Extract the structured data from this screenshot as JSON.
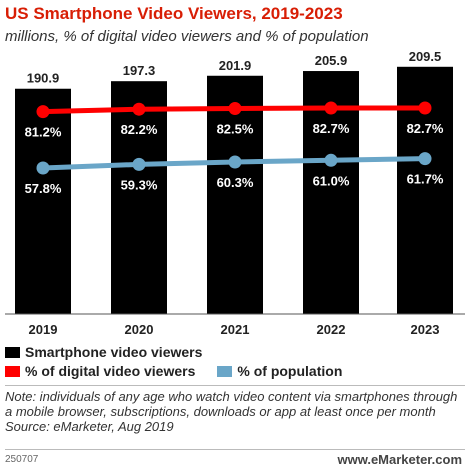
{
  "title": "US Smartphone Video Viewers, 2019-2023",
  "subtitle": "millions, % of digital video viewers and % of population",
  "colors": {
    "title": "#d81e05",
    "bars": "#000000",
    "digital_line": "#ff0000",
    "population_line": "#6aa6c8"
  },
  "chart_data": {
    "type": "bar",
    "categories": [
      "2019",
      "2020",
      "2021",
      "2022",
      "2023"
    ],
    "series": [
      {
        "name": "Smartphone video viewers",
        "type": "bar",
        "values": [
          190.9,
          197.3,
          201.9,
          205.9,
          209.5
        ],
        "labels": [
          "190.9",
          "197.3",
          "201.9",
          "205.9",
          "209.5"
        ]
      },
      {
        "name": "% of digital video viewers",
        "type": "line",
        "values": [
          81.2,
          82.2,
          82.5,
          82.7,
          82.7
        ],
        "labels": [
          "81.2%",
          "82.2%",
          "82.5%",
          "82.7%",
          "82.7%"
        ]
      },
      {
        "name": "% of population",
        "type": "line",
        "values": [
          57.8,
          59.3,
          60.3,
          61.0,
          61.7
        ],
        "labels": [
          "57.8%",
          "59.3%",
          "60.3%",
          "61.0%",
          "61.7%"
        ]
      }
    ],
    "bar_ylim": [
      0,
      235
    ],
    "pct_ylim": [
      0,
      100
    ],
    "grid": false,
    "legend_placement": "bottom"
  },
  "legend": [
    {
      "label": "Smartphone video viewers",
      "color": "#000000"
    },
    {
      "label": "% of digital video viewers",
      "color": "#ff0000"
    },
    {
      "label": "% of population",
      "color": "#6aa6c8"
    }
  ],
  "note": "Note: individuals of any age who watch video content via smartphones through a mobile browser, subscriptions, downloads or app at least once per month",
  "source": "Source: eMarketer, Aug 2019",
  "footer_id": "250707",
  "brand": {
    "prefix": "www.",
    "name": "eMarketer",
    "suffix": ".com"
  }
}
